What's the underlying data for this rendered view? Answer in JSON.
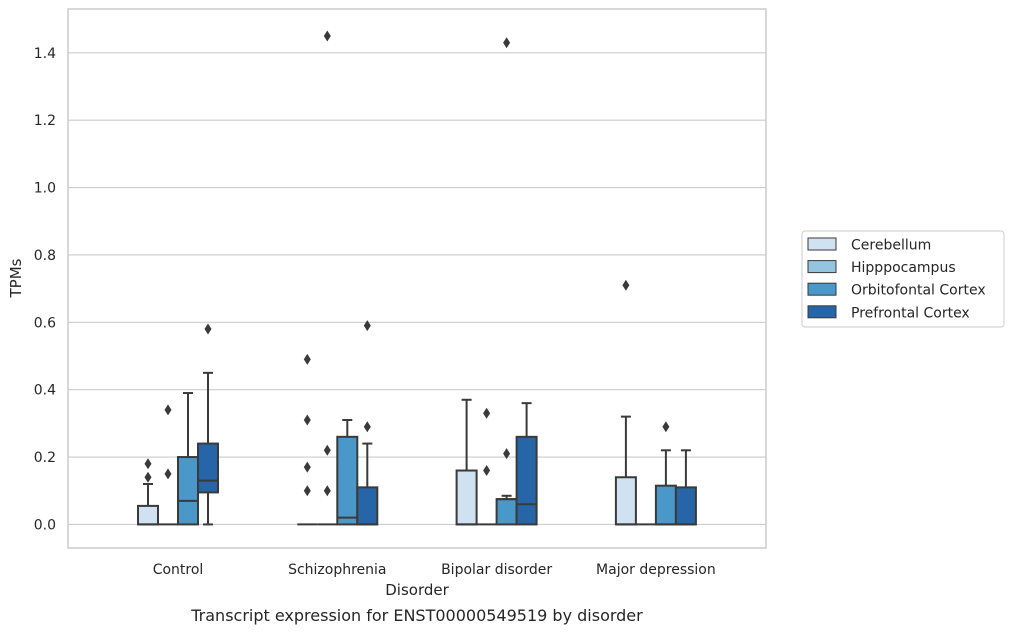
{
  "caption": "Transcript expression for ENST00000549519 by disorder",
  "chart_data": {
    "type": "boxplot",
    "xlabel": "Disorder",
    "ylabel": "TPMs",
    "ylim": [
      -0.07,
      1.53
    ],
    "yticks": [
      0.0,
      0.2,
      0.4,
      0.6,
      0.8,
      1.0,
      1.2,
      1.4
    ],
    "ytick_labels": [
      "0.0",
      "0.2",
      "0.4",
      "0.6",
      "0.8",
      "1.0",
      "1.2",
      "1.4"
    ],
    "grid": "horizontal",
    "legend_position": "right",
    "categories": [
      "Control",
      "Schizophrenia",
      "Bipolar disorder",
      "Major depression"
    ],
    "series": [
      {
        "name": "Cerebellum",
        "color": "#d0e1f2",
        "boxes": [
          {
            "category": "Control",
            "q1": 0.0,
            "median": 0.0,
            "q3": 0.055,
            "whisker_low": 0.0,
            "whisker_high": 0.12,
            "outliers": [
              0.14,
              0.18
            ]
          },
          {
            "category": "Schizophrenia",
            "q1": 0.0,
            "median": 0.0,
            "q3": 0.0,
            "whisker_low": 0.0,
            "whisker_high": 0.0,
            "outliers": [
              0.1,
              0.17,
              0.31,
              0.49
            ]
          },
          {
            "category": "Bipolar disorder",
            "q1": 0.0,
            "median": 0.0,
            "q3": 0.16,
            "whisker_low": 0.0,
            "whisker_high": 0.37,
            "outliers": []
          },
          {
            "category": "Major depression",
            "q1": 0.0,
            "median": 0.0,
            "q3": 0.14,
            "whisker_low": 0.0,
            "whisker_high": 0.32,
            "outliers": [
              0.71
            ]
          }
        ]
      },
      {
        "name": "Hipppocampus",
        "color": "#94c4df",
        "boxes": [
          {
            "category": "Control",
            "q1": 0.0,
            "median": 0.0,
            "q3": 0.0,
            "whisker_low": 0.0,
            "whisker_high": 0.0,
            "outliers": [
              0.15,
              0.34
            ]
          },
          {
            "category": "Schizophrenia",
            "q1": 0.0,
            "median": 0.0,
            "q3": 0.0,
            "whisker_low": 0.0,
            "whisker_high": 0.0,
            "outliers": [
              0.1,
              0.22,
              1.45
            ]
          },
          {
            "category": "Bipolar disorder",
            "q1": 0.0,
            "median": 0.0,
            "q3": 0.0,
            "whisker_low": 0.0,
            "whisker_high": 0.0,
            "outliers": [
              0.16,
              0.33
            ]
          },
          {
            "category": "Major depression",
            "q1": 0.0,
            "median": 0.0,
            "q3": 0.0,
            "whisker_low": 0.0,
            "whisker_high": 0.0,
            "outliers": []
          }
        ]
      },
      {
        "name": "Orbitofontal Cortex",
        "color": "#4a98c9",
        "boxes": [
          {
            "category": "Control",
            "q1": 0.0,
            "median": 0.07,
            "q3": 0.2,
            "whisker_low": 0.0,
            "whisker_high": 0.39,
            "outliers": []
          },
          {
            "category": "Schizophrenia",
            "q1": 0.0,
            "median": 0.02,
            "q3": 0.26,
            "whisker_low": 0.0,
            "whisker_high": 0.31,
            "outliers": []
          },
          {
            "category": "Bipolar disorder",
            "q1": 0.0,
            "median": 0.075,
            "q3": 0.075,
            "whisker_low": 0.0,
            "whisker_high": 0.085,
            "outliers": [
              0.21,
              1.43
            ]
          },
          {
            "category": "Major depression",
            "q1": 0.0,
            "median": 0.0,
            "q3": 0.115,
            "whisker_low": 0.0,
            "whisker_high": 0.22,
            "outliers": [
              0.29
            ]
          }
        ]
      },
      {
        "name": "Prefrontal Cortex",
        "color": "#2666a8",
        "boxes": [
          {
            "category": "Control",
            "q1": 0.095,
            "median": 0.13,
            "q3": 0.24,
            "whisker_low": 0.0,
            "whisker_high": 0.45,
            "outliers": [
              0.58
            ]
          },
          {
            "category": "Schizophrenia",
            "q1": 0.0,
            "median": 0.0,
            "q3": 0.11,
            "whisker_low": 0.0,
            "whisker_high": 0.24,
            "outliers": [
              0.29,
              0.59
            ]
          },
          {
            "category": "Bipolar disorder",
            "q1": 0.0,
            "median": 0.06,
            "q3": 0.26,
            "whisker_low": 0.0,
            "whisker_high": 0.36,
            "outliers": []
          },
          {
            "category": "Major depression",
            "q1": 0.0,
            "median": 0.0,
            "q3": 0.11,
            "whisker_low": 0.0,
            "whisker_high": 0.22,
            "outliers": []
          }
        ]
      }
    ]
  }
}
